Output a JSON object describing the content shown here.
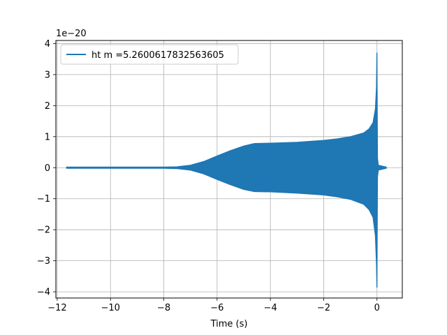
{
  "chart_data": {
    "type": "line",
    "title": "",
    "xlabel": "Time (s)",
    "ylabel": "",
    "y_offset_label": "1e−20",
    "xlim": [
      -12.05,
      0.95
    ],
    "ylim": [
      -4.2,
      4.1
    ],
    "xticks": [
      -12,
      -10,
      -8,
      -6,
      -4,
      -2,
      0
    ],
    "xtick_labels": [
      "−12",
      "−10",
      "−8",
      "−6",
      "−4",
      "−2",
      "0"
    ],
    "yticks": [
      -4,
      -3,
      -2,
      -1,
      0,
      1,
      2,
      3,
      4
    ],
    "ytick_labels": [
      "−4",
      "−3",
      "−2",
      "−1",
      "0",
      "1",
      "2",
      "3",
      "4"
    ],
    "grid": true,
    "legend_position": "upper-left",
    "series": [
      {
        "name": "ht m =5.2600617832563605",
        "color": "#1f77b4",
        "envelope_upper": [
          [
            -11.65,
            0.02
          ],
          [
            -8,
            0.02
          ],
          [
            -7.5,
            0.03
          ],
          [
            -7,
            0.08
          ],
          [
            -6.5,
            0.2
          ],
          [
            -6,
            0.38
          ],
          [
            -5.5,
            0.55
          ],
          [
            -5,
            0.7
          ],
          [
            -4.6,
            0.78
          ],
          [
            -4,
            0.79
          ],
          [
            -3,
            0.82
          ],
          [
            -2,
            0.88
          ],
          [
            -1.5,
            0.93
          ],
          [
            -1,
            1.0
          ],
          [
            -0.5,
            1.12
          ],
          [
            -0.3,
            1.25
          ],
          [
            -0.15,
            1.45
          ],
          [
            -0.06,
            1.9
          ],
          [
            -0.02,
            2.6
          ],
          [
            -0.005,
            3.7
          ],
          [
            0.0,
            3.7
          ],
          [
            0.02,
            0.3
          ],
          [
            0.05,
            0.08
          ],
          [
            0.35,
            0.02
          ]
        ],
        "envelope_lower": [
          [
            -11.65,
            -0.02
          ],
          [
            -8,
            -0.02
          ],
          [
            -7.5,
            -0.03
          ],
          [
            -7,
            -0.08
          ],
          [
            -6.5,
            -0.2
          ],
          [
            -6,
            -0.38
          ],
          [
            -5.5,
            -0.55
          ],
          [
            -5,
            -0.7
          ],
          [
            -4.6,
            -0.77
          ],
          [
            -4,
            -0.78
          ],
          [
            -3,
            -0.82
          ],
          [
            -2,
            -0.88
          ],
          [
            -1.5,
            -0.94
          ],
          [
            -1,
            -1.02
          ],
          [
            -0.5,
            -1.18
          ],
          [
            -0.3,
            -1.35
          ],
          [
            -0.15,
            -1.6
          ],
          [
            -0.06,
            -2.2
          ],
          [
            -0.02,
            -3.1
          ],
          [
            -0.005,
            -3.85
          ],
          [
            0.0,
            -3.85
          ],
          [
            0.02,
            -0.3
          ],
          [
            0.05,
            -0.08
          ],
          [
            0.35,
            -0.02
          ]
        ]
      }
    ]
  }
}
